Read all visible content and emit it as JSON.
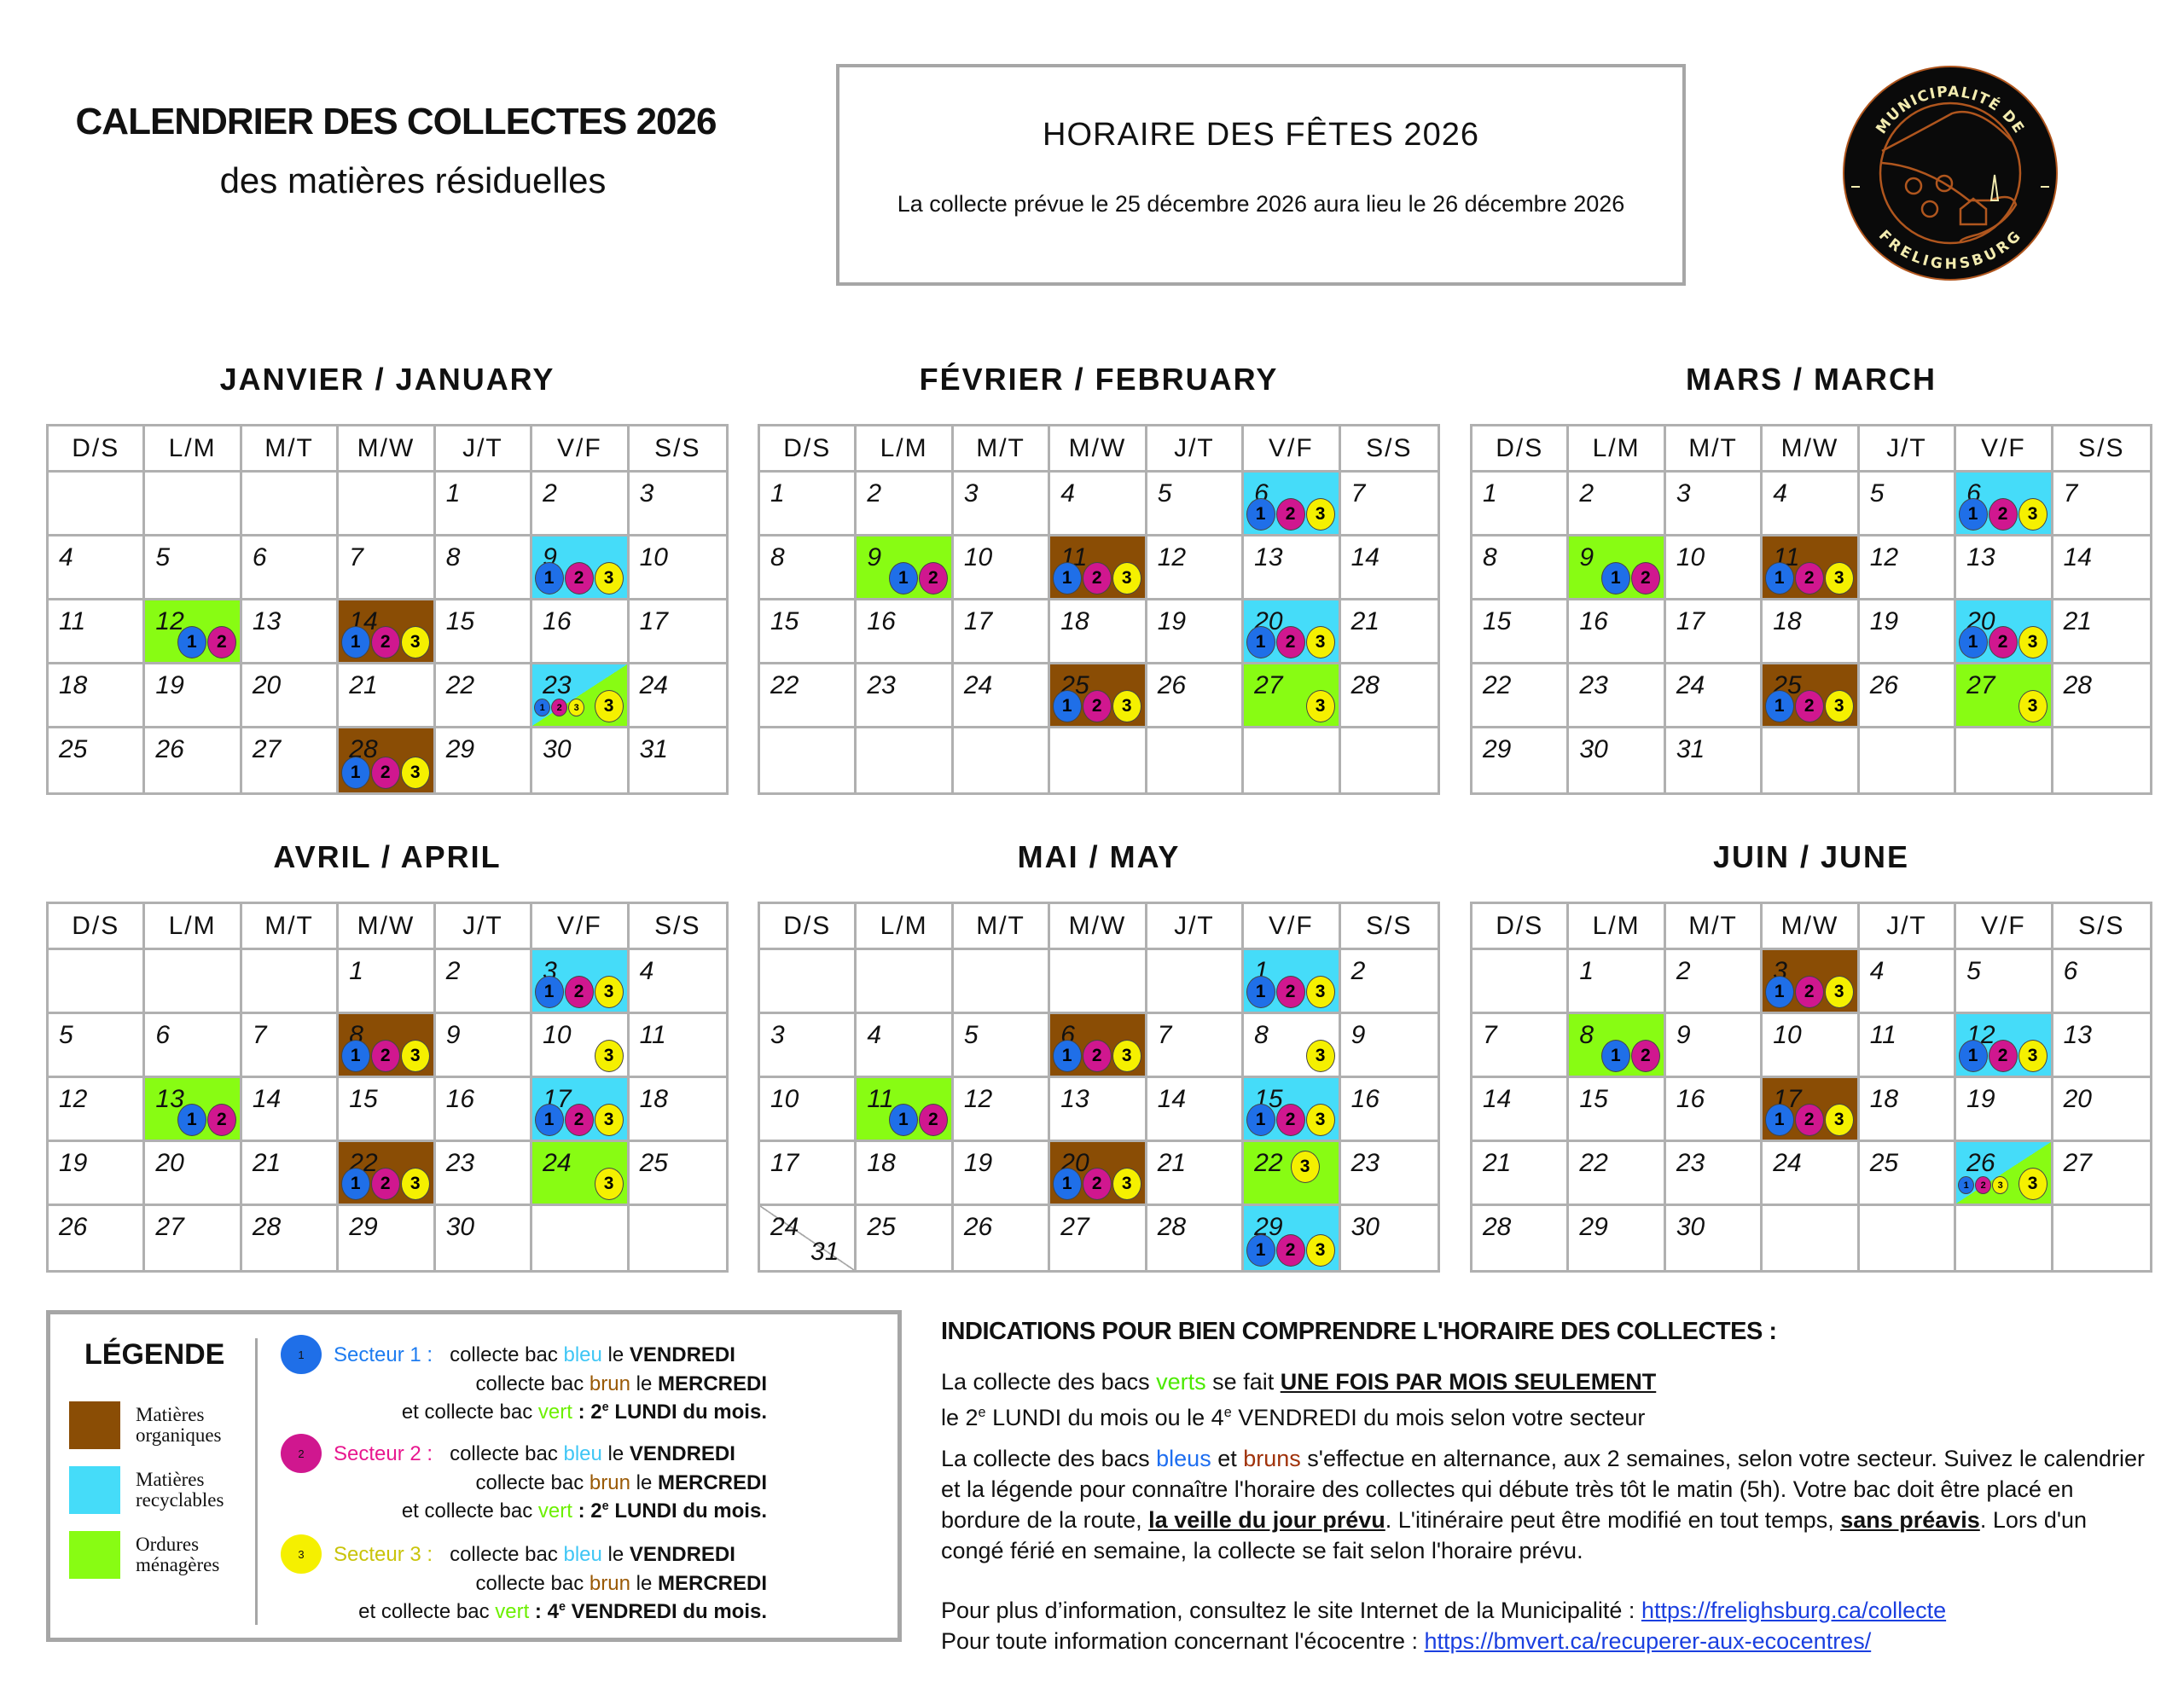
{
  "header": {
    "title": "CALENDRIER DES COLLECTES 2026",
    "subtitle": "des matières résiduelles"
  },
  "holiday": {
    "title": "HORAIRE  DES FÊTES  2026",
    "text": "La collecte prévue le 25 décembre 2026 aura lieu le 26 décembre 2026"
  },
  "logo": {
    "top": "MUNICIPALITÉ DE",
    "bottom": "FRELIGHSBURG",
    "colors": {
      "background": "#0a0a0a",
      "line": "#b0561e",
      "text": "#f3ecb0"
    }
  },
  "colors": {
    "organic": "#8a4d05",
    "recyclable": "#45dcf9",
    "garbage": "#88fc13",
    "sector1": "#1f6fe8",
    "sector2": "#d0178f",
    "sector3": "#f5f000"
  },
  "weekday_headers": [
    "D/S",
    "L/M",
    "M/T",
    "M/W",
    "J/T",
    "V/F",
    "S/S"
  ],
  "months": [
    {
      "title": "JANVIER  /  JANUARY",
      "weeks": [
        [
          {
            "d": ""
          },
          {
            "d": ""
          },
          {
            "d": ""
          },
          {
            "d": ""
          },
          {
            "d": "1"
          },
          {
            "d": "2"
          },
          {
            "d": "3"
          }
        ],
        [
          {
            "d": "4"
          },
          {
            "d": "5"
          },
          {
            "d": "6"
          },
          {
            "d": "7"
          },
          {
            "d": "8"
          },
          {
            "d": "9",
            "bg": "recyclable",
            "sectors": [
              1,
              2,
              3
            ]
          },
          {
            "d": "10"
          }
        ],
        [
          {
            "d": "11"
          },
          {
            "d": "12",
            "bg": "garbage",
            "sectors": [
              1,
              2
            ]
          },
          {
            "d": "13"
          },
          {
            "d": "14",
            "bg": "organic",
            "sectors": [
              1,
              2,
              3
            ]
          },
          {
            "d": "15"
          },
          {
            "d": "16"
          },
          {
            "d": "17"
          }
        ],
        [
          {
            "d": "18"
          },
          {
            "d": "19"
          },
          {
            "d": "20"
          },
          {
            "d": "21"
          },
          {
            "d": "22"
          },
          {
            "d": "23",
            "bg": "split",
            "small_sectors": [
              1,
              2,
              3
            ],
            "sectors": [
              3
            ]
          },
          {
            "d": "24"
          }
        ],
        [
          {
            "d": "25"
          },
          {
            "d": "26"
          },
          {
            "d": "27"
          },
          {
            "d": "28",
            "bg": "organic",
            "sectors": [
              1,
              2,
              3
            ]
          },
          {
            "d": "29"
          },
          {
            "d": "30"
          },
          {
            "d": "31"
          }
        ]
      ]
    },
    {
      "title": "FÉVRIER  /  FEBRUARY",
      "weeks": [
        [
          {
            "d": "1"
          },
          {
            "d": "2"
          },
          {
            "d": "3"
          },
          {
            "d": "4"
          },
          {
            "d": "5"
          },
          {
            "d": "6",
            "bg": "recyclable",
            "sectors": [
              1,
              2,
              3
            ]
          },
          {
            "d": "7"
          }
        ],
        [
          {
            "d": "8"
          },
          {
            "d": "9",
            "bg": "garbage",
            "sectors": [
              1,
              2
            ]
          },
          {
            "d": "10"
          },
          {
            "d": "11",
            "bg": "organic",
            "sectors": [
              1,
              2,
              3
            ]
          },
          {
            "d": "12"
          },
          {
            "d": "13"
          },
          {
            "d": "14"
          }
        ],
        [
          {
            "d": "15"
          },
          {
            "d": "16"
          },
          {
            "d": "17"
          },
          {
            "d": "18"
          },
          {
            "d": "19"
          },
          {
            "d": "20",
            "bg": "recyclable",
            "sectors": [
              1,
              2,
              3
            ]
          },
          {
            "d": "21"
          }
        ],
        [
          {
            "d": "22"
          },
          {
            "d": "23"
          },
          {
            "d": "24"
          },
          {
            "d": "25",
            "bg": "organic",
            "sectors": [
              1,
              2,
              3
            ]
          },
          {
            "d": "26"
          },
          {
            "d": "27",
            "bg": "garbage",
            "sectors": [
              3
            ]
          },
          {
            "d": "28"
          }
        ],
        [
          {
            "d": ""
          },
          {
            "d": ""
          },
          {
            "d": ""
          },
          {
            "d": ""
          },
          {
            "d": ""
          },
          {
            "d": ""
          },
          {
            "d": ""
          }
        ]
      ]
    },
    {
      "title": "MARS  /  MARCH",
      "weeks": [
        [
          {
            "d": "1"
          },
          {
            "d": "2"
          },
          {
            "d": "3"
          },
          {
            "d": "4"
          },
          {
            "d": "5"
          },
          {
            "d": "6",
            "bg": "recyclable",
            "sectors": [
              1,
              2,
              3
            ]
          },
          {
            "d": "7"
          }
        ],
        [
          {
            "d": "8"
          },
          {
            "d": "9",
            "bg": "garbage",
            "sectors": [
              1,
              2
            ]
          },
          {
            "d": "10"
          },
          {
            "d": "11",
            "bg": "organic",
            "sectors": [
              1,
              2,
              3
            ]
          },
          {
            "d": "12"
          },
          {
            "d": "13"
          },
          {
            "d": "14"
          }
        ],
        [
          {
            "d": "15"
          },
          {
            "d": "16"
          },
          {
            "d": "17"
          },
          {
            "d": "18"
          },
          {
            "d": "19"
          },
          {
            "d": "20",
            "bg": "recyclable",
            "sectors": [
              1,
              2,
              3
            ]
          },
          {
            "d": "21"
          }
        ],
        [
          {
            "d": "22"
          },
          {
            "d": "23"
          },
          {
            "d": "24"
          },
          {
            "d": "25",
            "bg": "organic",
            "sectors": [
              1,
              2,
              3
            ]
          },
          {
            "d": "26"
          },
          {
            "d": "27",
            "bg": "garbage",
            "sectors": [
              3
            ]
          },
          {
            "d": "28"
          }
        ],
        [
          {
            "d": "29"
          },
          {
            "d": "30"
          },
          {
            "d": "31"
          },
          {
            "d": ""
          },
          {
            "d": ""
          },
          {
            "d": ""
          },
          {
            "d": ""
          }
        ]
      ]
    },
    {
      "title": "AVRIL  /  APRIL",
      "weeks": [
        [
          {
            "d": ""
          },
          {
            "d": ""
          },
          {
            "d": ""
          },
          {
            "d": "1"
          },
          {
            "d": "2"
          },
          {
            "d": "3",
            "bg": "recyclable",
            "sectors": [
              1,
              2,
              3
            ]
          },
          {
            "d": "4"
          }
        ],
        [
          {
            "d": "5"
          },
          {
            "d": "6"
          },
          {
            "d": "7"
          },
          {
            "d": "8",
            "bg": "organic",
            "sectors": [
              1,
              2,
              3
            ]
          },
          {
            "d": "9"
          },
          {
            "d": "10",
            "sectors": [
              3
            ]
          },
          {
            "d": "11"
          }
        ],
        [
          {
            "d": "12"
          },
          {
            "d": "13",
            "bg": "garbage",
            "sectors": [
              1,
              2
            ]
          },
          {
            "d": "14"
          },
          {
            "d": "15"
          },
          {
            "d": "16"
          },
          {
            "d": "17",
            "bg": "recyclable",
            "sectors": [
              1,
              2,
              3
            ]
          },
          {
            "d": "18"
          }
        ],
        [
          {
            "d": "19"
          },
          {
            "d": "20"
          },
          {
            "d": "21"
          },
          {
            "d": "22",
            "bg": "organic",
            "sectors": [
              1,
              2,
              3
            ]
          },
          {
            "d": "23"
          },
          {
            "d": "24",
            "bg": "garbage",
            "sectors": [
              3
            ]
          },
          {
            "d": "25"
          }
        ],
        [
          {
            "d": "26"
          },
          {
            "d": "27"
          },
          {
            "d": "28"
          },
          {
            "d": "29"
          },
          {
            "d": "30"
          },
          {
            "d": ""
          },
          {
            "d": ""
          }
        ]
      ]
    },
    {
      "title": "MAI  /  MAY",
      "weeks": [
        [
          {
            "d": ""
          },
          {
            "d": ""
          },
          {
            "d": ""
          },
          {
            "d": ""
          },
          {
            "d": ""
          },
          {
            "d": "1",
            "bg": "recyclable",
            "sectors": [
              1,
              2,
              3
            ]
          },
          {
            "d": "2"
          }
        ],
        [
          {
            "d": "3"
          },
          {
            "d": "4"
          },
          {
            "d": "5"
          },
          {
            "d": "6",
            "bg": "organic",
            "sectors": [
              1,
              2,
              3
            ]
          },
          {
            "d": "7"
          },
          {
            "d": "8",
            "sectors": [
              3
            ]
          },
          {
            "d": "9"
          }
        ],
        [
          {
            "d": "10"
          },
          {
            "d": "11",
            "bg": "garbage",
            "sectors": [
              1,
              2
            ]
          },
          {
            "d": "12"
          },
          {
            "d": "13"
          },
          {
            "d": "14"
          },
          {
            "d": "15",
            "bg": "recyclable",
            "sectors": [
              1,
              2,
              3
            ]
          },
          {
            "d": "16"
          }
        ],
        [
          {
            "d": "17"
          },
          {
            "d": "18"
          },
          {
            "d": "19"
          },
          {
            "d": "20",
            "bg": "organic",
            "sectors": [
              1,
              2,
              3
            ]
          },
          {
            "d": "21"
          },
          {
            "d": "22",
            "bg": "garbage",
            "sectors": [
              3
            ],
            "circle_top": true
          },
          {
            "d": "23"
          }
        ],
        [
          {
            "d": "24",
            "d2": "31"
          },
          {
            "d": "25"
          },
          {
            "d": "26"
          },
          {
            "d": "27"
          },
          {
            "d": "28"
          },
          {
            "d": "29",
            "bg": "recyclable",
            "sectors": [
              1,
              2,
              3
            ]
          },
          {
            "d": "30"
          }
        ]
      ]
    },
    {
      "title": "JUIN  /  JUNE",
      "weeks": [
        [
          {
            "d": ""
          },
          {
            "d": "1"
          },
          {
            "d": "2"
          },
          {
            "d": "3",
            "bg": "organic",
            "sectors": [
              1,
              2,
              3
            ]
          },
          {
            "d": "4"
          },
          {
            "d": "5"
          },
          {
            "d": "6"
          }
        ],
        [
          {
            "d": "7"
          },
          {
            "d": "8",
            "bg": "garbage",
            "sectors": [
              1,
              2
            ]
          },
          {
            "d": "9"
          },
          {
            "d": "10"
          },
          {
            "d": "11"
          },
          {
            "d": "12",
            "bg": "recyclable",
            "sectors": [
              1,
              2,
              3
            ]
          },
          {
            "d": "13"
          }
        ],
        [
          {
            "d": "14"
          },
          {
            "d": "15"
          },
          {
            "d": "16"
          },
          {
            "d": "17",
            "bg": "organic",
            "sectors": [
              1,
              2,
              3
            ]
          },
          {
            "d": "18"
          },
          {
            "d": "19"
          },
          {
            "d": "20"
          }
        ],
        [
          {
            "d": "21"
          },
          {
            "d": "22"
          },
          {
            "d": "23"
          },
          {
            "d": "24"
          },
          {
            "d": "25"
          },
          {
            "d": "26",
            "bg": "split",
            "small_sectors": [
              1,
              2,
              3
            ],
            "sectors": [
              3
            ]
          },
          {
            "d": "27"
          }
        ],
        [
          {
            "d": "28"
          },
          {
            "d": "29"
          },
          {
            "d": "30"
          },
          {
            "d": ""
          },
          {
            "d": ""
          },
          {
            "d": ""
          },
          {
            "d": ""
          }
        ]
      ]
    }
  ],
  "legend": {
    "title": "LÉGENDE",
    "categories": [
      {
        "line1": "Matières",
        "line2": "organiques",
        "color": "#8a4d05"
      },
      {
        "line1": "Matières",
        "line2": "recyclables",
        "color": "#45dcf9"
      },
      {
        "line1": "Ordures",
        "line2": "ménagères",
        "color": "#88fc13"
      }
    ],
    "word_colors": {
      "bleu": "#3fc6f5",
      "brun": "#9a5a06",
      "vert": "#6cf000"
    },
    "sectors": [
      {
        "num": "1",
        "label": "Secteur 1 :",
        "color": "#1f6fe8",
        "label_color": "#1e7cf0",
        "l1": [
          "collecte bac",
          "bleu",
          "le",
          "VENDREDI"
        ],
        "l2": [
          "collecte bac",
          "brun",
          "le",
          "MERCREDI"
        ],
        "l3": [
          "et collecte bac",
          "vert",
          ":",
          "2",
          "e",
          "LUNDI du mois."
        ]
      },
      {
        "num": "2",
        "label": "Secteur 2 :",
        "color": "#d0178f",
        "label_color": "#e8188f",
        "l1": [
          "collecte bac",
          "bleu",
          "le",
          "VENDREDI"
        ],
        "l2": [
          "collecte bac",
          "brun",
          "le",
          "MERCREDI"
        ],
        "l3": [
          "et collecte bac",
          "vert",
          ":",
          "2",
          "e",
          "LUNDI du mois."
        ]
      },
      {
        "num": "3",
        "label": "Secteur 3 :",
        "color": "#f5f000",
        "label_color": "#c9c40a",
        "l1": [
          "collecte bac",
          "bleu",
          "le",
          "VENDREDI"
        ],
        "l2": [
          "collecte bac",
          "brun",
          "le",
          "MERCREDI"
        ],
        "l3": [
          "et collecte bac",
          "vert",
          ":",
          "4",
          "e",
          "VENDREDI du mois."
        ]
      }
    ]
  },
  "indications": {
    "title": "INDICATIONS POUR BIEN COMPRENDRE L'HORAIRE DES COLLECTES :",
    "paragraphs": [
      [
        {
          "t": "La collecte des bacs "
        },
        {
          "t": "verts",
          "c": "#4bea00"
        },
        {
          "t": " se fait "
        },
        {
          "t": "UNE FOIS PAR MOIS SEULEMENT",
          "s": "u"
        },
        {
          "br": true
        },
        {
          "t": "le 2"
        },
        {
          "t": "e",
          "s": "sup"
        },
        {
          "t": " LUNDI du mois ou le 4"
        },
        {
          "t": "e",
          "s": "sup"
        },
        {
          "t": " VENDREDI du mois selon votre secteur"
        }
      ],
      [
        {
          "t": "La collecte des bacs "
        },
        {
          "t": "bleus",
          "c": "#1e6ef0"
        },
        {
          "t": " et "
        },
        {
          "t": "bruns",
          "c": "#a0320a"
        },
        {
          "t": " s'effectue en alternance, aux 2 semaines, selon votre secteur. Suivez le calendrier et la légende pour connaître l'horaire des collectes qui débute très tôt le matin (5h). Votre bac doit être placé en bordure de la route, "
        },
        {
          "t": "la veille du jour prévu",
          "s": "u"
        },
        {
          "t": ". L'itinéraire peut être modifié en tout temps, "
        },
        {
          "t": "sans préavis",
          "s": "u"
        },
        {
          "t": ". Lors d'un congé férié en semaine, la collecte se fait selon l'horaire prévu."
        }
      ],
      [
        {
          "t": "Pour plus d’information, consultez le site Internet de la Municipalité : "
        },
        {
          "t": "https://frelighsburg.ca/collecte",
          "s": "link"
        },
        {
          "br": true
        },
        {
          "t": "Pour toute information concernant l'écocentre : "
        },
        {
          "t": "https://bmvert.ca/recuperer-aux-ecocentres/",
          "s": "link"
        }
      ]
    ]
  }
}
